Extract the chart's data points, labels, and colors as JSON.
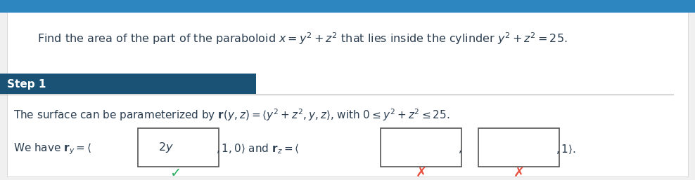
{
  "bg_color": "#f0f0f0",
  "panel_bg": "#ffffff",
  "step_bg": "#1a5276",
  "step_text": "Step 1",
  "step_text_color": "#ffffff",
  "title_text": "Find the area of the part of the paraboloid $x = y^2 + z^2$ that lies inside the cylinder $y^2 + z^2 = 25$.",
  "step1_line1": "The surface can be parameterized by $\\mathbf{r}(y, z) = \\langle y^2 + z^2, y, z\\rangle$, with $0 \\leq y^2 + z^2 \\leq 25$.",
  "step1_line2_prefix": "We have $\\mathbf{r}_y = \\langle$",
  "box1_text": "$2y$",
  "step1_mid": "$, 1, 0\\rangle$ and $\\mathbf{r}_z = \\langle$",
  "step1_suffix": "$, 1\\rangle$.",
  "check_color": "#27ae60",
  "cross_color": "#e74c3c",
  "dark_text": "#2c3e50",
  "box_border": "#555555"
}
